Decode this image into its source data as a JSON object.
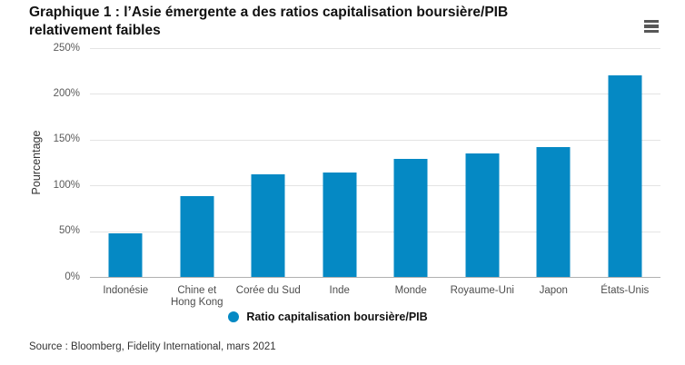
{
  "header": {
    "title": "Graphique 1 : l’Asie émergente a des ratios capitalisation boursière/PIB relativement faibles"
  },
  "menu": {
    "icon": "hamburger-menu-icon",
    "color": "#575757"
  },
  "chart_data": {
    "type": "bar",
    "title": "Graphique 1 : l’Asie émergente a des ratios capitalisation boursière/PIB relativement faibles",
    "categories": [
      "Indonésie",
      "Chine et\nHong Kong",
      "Corée du Sud",
      "Inde",
      "Monde",
      "Royaume-Uni",
      "Japon",
      "États-Unis"
    ],
    "values": [
      48,
      88,
      112,
      114,
      129,
      135,
      142,
      220
    ],
    "unit": "%",
    "xlabel": "",
    "ylabel": "Pourcentage",
    "ylim": [
      0,
      250
    ],
    "ytick_step": 50,
    "ytick_labels": [
      "0%",
      "50%",
      "100%",
      "150%",
      "200%",
      "250%"
    ],
    "legend": [
      "Ratio capitalisation boursière/PIB"
    ],
    "legend_position": "bottom",
    "grid": true,
    "bar_color": "#0589c4",
    "gridline_color": "#e4e4e4",
    "axis_line_color": "#b0b0b0"
  },
  "source": {
    "text": "Source : Bloomberg, Fidelity International, mars 2021"
  }
}
